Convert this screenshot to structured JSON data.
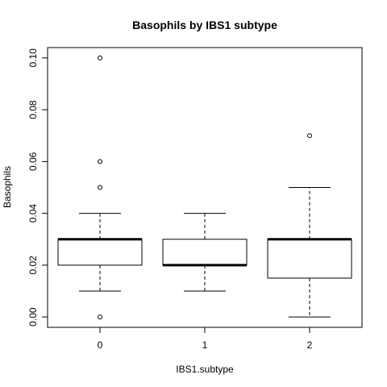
{
  "chart_data": {
    "type": "boxplot",
    "title": "Basophils by IBS1 subtype",
    "xlabel": "IBS1.subtype",
    "ylabel": "Basophils",
    "categories": [
      "0",
      "1",
      "2"
    ],
    "ylim": [
      -0.004,
      0.104
    ],
    "yticks": [
      0.0,
      0.02,
      0.04,
      0.06,
      0.08,
      0.1
    ],
    "ytick_labels": [
      "0.00",
      "0.02",
      "0.04",
      "0.06",
      "0.08",
      "0.10"
    ],
    "boxes": [
      {
        "category": "0",
        "whisker_low": 0.01,
        "q1": 0.02,
        "median": 0.03,
        "q3": 0.03,
        "whisker_high": 0.04,
        "outliers": [
          0.0,
          0.05,
          0.06,
          0.1
        ]
      },
      {
        "category": "1",
        "whisker_low": 0.01,
        "q1": 0.02,
        "median": 0.02,
        "q3": 0.03,
        "whisker_high": 0.04,
        "outliers": []
      },
      {
        "category": "2",
        "whisker_low": 0.0,
        "q1": 0.015,
        "median": 0.03,
        "q3": 0.03,
        "whisker_high": 0.05,
        "outliers": [
          0.07
        ]
      }
    ],
    "grid": false,
    "legend": "none"
  }
}
